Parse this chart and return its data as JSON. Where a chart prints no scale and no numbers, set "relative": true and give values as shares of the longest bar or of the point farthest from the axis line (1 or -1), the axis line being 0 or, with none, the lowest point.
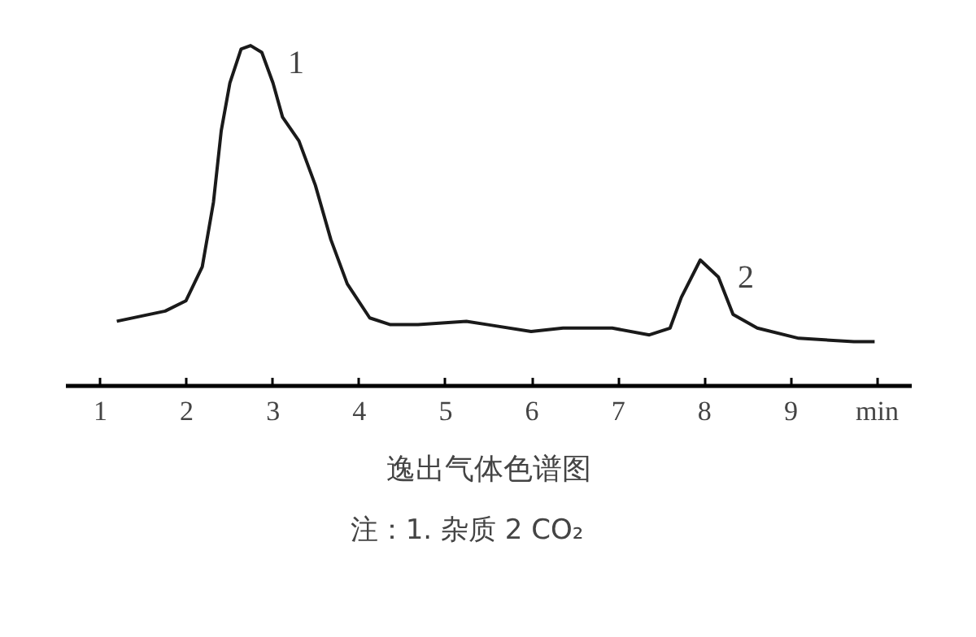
{
  "chart_data": {
    "type": "line",
    "relative": true,
    "title": "逸出气体色谱图",
    "x": [
      1.19,
      1.75,
      1.99,
      2.18,
      2.31,
      2.4,
      2.5,
      2.63,
      2.74,
      2.87,
      3.0,
      3.11,
      3.3,
      3.49,
      3.67,
      3.86,
      4.12,
      4.36,
      4.68,
      5.24,
      5.49,
      5.99,
      6.36,
      6.93,
      7.36,
      7.6,
      7.73,
      7.95,
      8.16,
      8.33,
      8.61,
      9.09,
      9.73,
      9.97
    ],
    "series": [
      {
        "color": "#1a1a1a",
        "values": [
          0.19,
          0.22,
          0.25,
          0.35,
          0.54,
          0.75,
          0.89,
          0.99,
          1.0,
          0.98,
          0.89,
          0.79,
          0.72,
          0.59,
          0.43,
          0.3,
          0.2,
          0.18,
          0.18,
          0.19,
          0.18,
          0.16,
          0.17,
          0.17,
          0.15,
          0.17,
          0.26,
          0.37,
          0.32,
          0.21,
          0.17,
          0.14,
          0.13,
          0.13
        ]
      }
    ],
    "xlim": [
      0.6,
      10.4
    ],
    "xticks": [
      1,
      2,
      3,
      4,
      5,
      6,
      7,
      8,
      9,
      {
        "value": 10,
        "label": "min"
      }
    ],
    "grid": false,
    "marker": "none",
    "line_style": "solid",
    "tick_labels": "x",
    "annotations": [
      {
        "text": "1",
        "x": 2.74,
        "y": 1.0
      },
      {
        "text": "2",
        "x": 7.95,
        "y": 0.37
      },
      "注：1.  杂质    2  CO₂"
    ]
  }
}
